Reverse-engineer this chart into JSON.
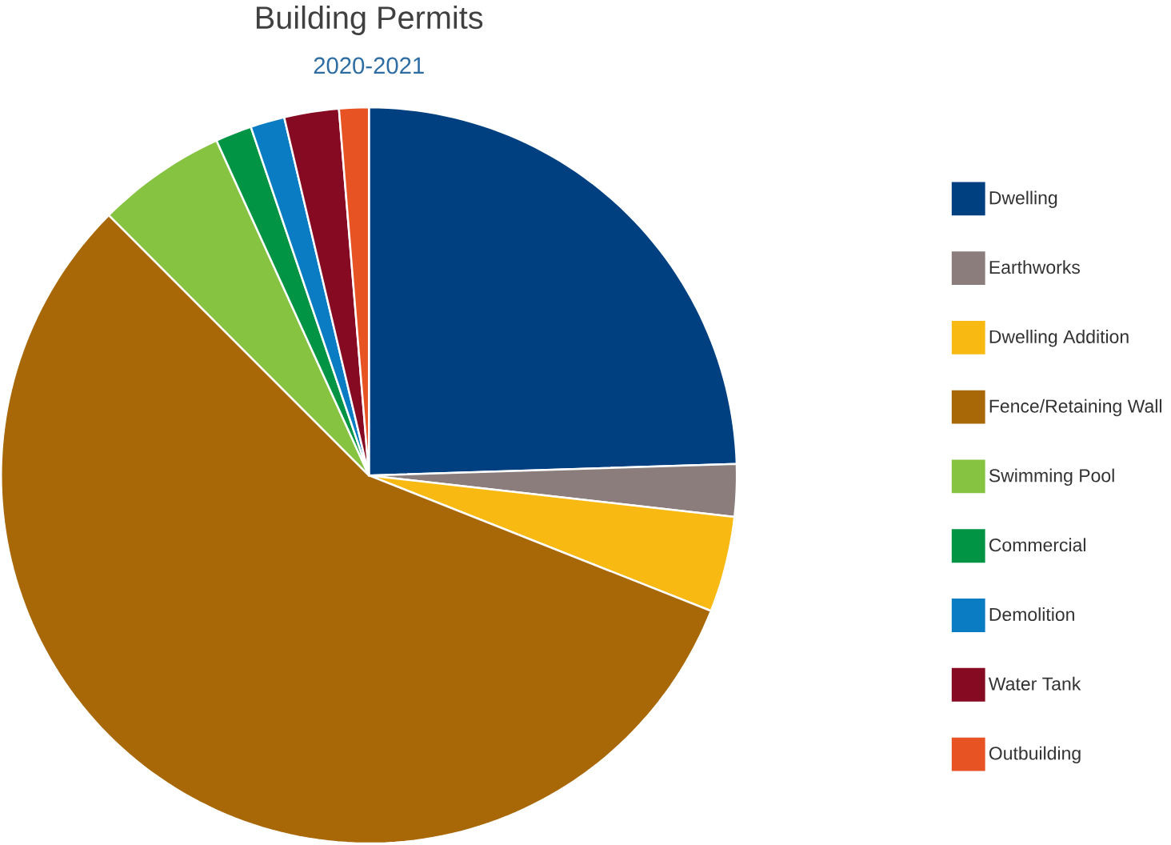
{
  "chart_data": {
    "type": "pie",
    "title": "Building Permits",
    "subtitle": "2020-2021",
    "categories": [
      "Dwelling",
      "Earthworks",
      "Dwelling Addition",
      "Fence/Retaining Wall",
      "Swimming Pool",
      "Commercial",
      "Demolition",
      "Water Tank",
      "Outbuilding"
    ],
    "values": [
      24.5,
      2.3,
      4.2,
      56.5,
      5.7,
      1.6,
      1.5,
      2.4,
      1.3
    ],
    "colors": [
      "#004080",
      "#8a7d7b",
      "#f8b912",
      "#a86808",
      "#86c341",
      "#009444",
      "#0a7cc4",
      "#850a22",
      "#e85324"
    ],
    "legend": "right"
  }
}
